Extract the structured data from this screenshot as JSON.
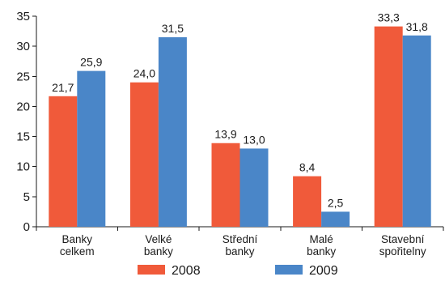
{
  "chart_data": {
    "type": "bar",
    "categories": [
      [
        "Banky",
        "celkem"
      ],
      [
        "Velké",
        "banky"
      ],
      [
        "Střední",
        "banky"
      ],
      [
        "Malé",
        "banky"
      ],
      [
        "Stavební",
        "spořitelny"
      ]
    ],
    "series": [
      {
        "name": "2008",
        "color": "#f05a3a",
        "values": [
          21.7,
          24.0,
          13.9,
          8.4,
          33.3
        ],
        "labels": [
          "21,7",
          "24,0",
          "13,9",
          "8,4",
          "33,3"
        ]
      },
      {
        "name": "2009",
        "color": "#4a86c8",
        "values": [
          25.9,
          31.5,
          13.0,
          2.5,
          31.8
        ],
        "labels": [
          "25,9",
          "31,5",
          "13,0",
          "2,5",
          "31,8"
        ]
      }
    ],
    "ylim": [
      0,
      35
    ],
    "yticks": [
      0,
      5,
      10,
      15,
      20,
      25,
      30,
      35
    ],
    "grid": false,
    "legend": "bottom-center",
    "title": "",
    "xlabel": "",
    "ylabel": ""
  }
}
